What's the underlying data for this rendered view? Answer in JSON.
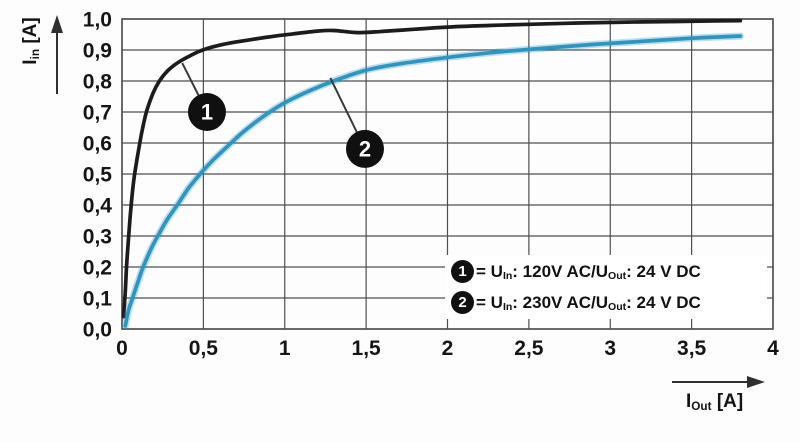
{
  "chart_data": {
    "type": "line",
    "title": "",
    "grid": true,
    "legend_position": "inside-bottom-right",
    "x_axis": {
      "label_main": "I",
      "label_sub": "Out",
      "label_unit": " [A]",
      "range": [
        0,
        4
      ],
      "ticks": [
        0,
        0.5,
        1,
        1.5,
        2,
        2.5,
        3,
        3.5,
        4
      ],
      "tick_labels": [
        "0",
        "0,5",
        "1",
        "1,5",
        "2",
        "2,5",
        "3",
        "3,5",
        "4"
      ]
    },
    "y_axis": {
      "label_main": "I",
      "label_sub": "in",
      "label_unit": " [A]",
      "range": [
        0,
        1
      ],
      "ticks": [
        0,
        0.1,
        0.2,
        0.3,
        0.4,
        0.5,
        0.6,
        0.7,
        0.8,
        0.9,
        1.0
      ],
      "tick_labels": [
        "0,0",
        "0,1",
        "0,2",
        "0,3",
        "0,4",
        "0,5",
        "0,6",
        "0,7",
        "0,8",
        "0,9",
        "1,0"
      ]
    },
    "series": [
      {
        "name": "1",
        "description": "U_In: 120V AC / U_Out: 24 V DC",
        "color": "#1c1c1c",
        "points": [
          [
            0.01,
            0.04
          ],
          [
            0.02,
            0.12
          ],
          [
            0.03,
            0.22
          ],
          [
            0.05,
            0.36
          ],
          [
            0.07,
            0.47
          ],
          [
            0.09,
            0.54
          ],
          [
            0.12,
            0.63
          ],
          [
            0.15,
            0.7
          ],
          [
            0.19,
            0.76
          ],
          [
            0.23,
            0.8
          ],
          [
            0.28,
            0.833
          ],
          [
            0.34,
            0.858
          ],
          [
            0.42,
            0.882
          ],
          [
            0.5,
            0.901
          ],
          [
            0.62,
            0.918
          ],
          [
            0.75,
            0.93
          ],
          [
            0.9,
            0.942
          ],
          [
            1.05,
            0.952
          ],
          [
            1.2,
            0.961
          ],
          [
            1.3,
            0.963
          ],
          [
            1.45,
            0.956
          ],
          [
            1.6,
            0.96
          ],
          [
            1.8,
            0.967
          ],
          [
            2.0,
            0.974
          ],
          [
            2.25,
            0.979
          ],
          [
            2.5,
            0.983
          ],
          [
            2.8,
            0.987
          ],
          [
            3.1,
            0.99
          ],
          [
            3.4,
            0.992
          ],
          [
            3.65,
            0.994
          ],
          [
            3.8,
            0.995
          ]
        ]
      },
      {
        "name": "2",
        "description": "U_In: 230V AC / U_Out: 24 V DC",
        "color": "#2b96c1",
        "points": [
          [
            0.02,
            0.01
          ],
          [
            0.04,
            0.06
          ],
          [
            0.065,
            0.1
          ],
          [
            0.1,
            0.155
          ],
          [
            0.13,
            0.2
          ],
          [
            0.18,
            0.26
          ],
          [
            0.22,
            0.3
          ],
          [
            0.28,
            0.355
          ],
          [
            0.34,
            0.4
          ],
          [
            0.41,
            0.455
          ],
          [
            0.48,
            0.5
          ],
          [
            0.56,
            0.545
          ],
          [
            0.65,
            0.59
          ],
          [
            0.75,
            0.638
          ],
          [
            0.88,
            0.69
          ],
          [
            1.0,
            0.73
          ],
          [
            1.15,
            0.768
          ],
          [
            1.3,
            0.8
          ],
          [
            1.5,
            0.835
          ],
          [
            1.7,
            0.855
          ],
          [
            2.0,
            0.876
          ],
          [
            2.3,
            0.893
          ],
          [
            2.6,
            0.906
          ],
          [
            2.9,
            0.918
          ],
          [
            3.2,
            0.928
          ],
          [
            3.5,
            0.938
          ],
          [
            3.8,
            0.945
          ]
        ]
      }
    ],
    "annotations": [
      {
        "label": "1",
        "cx": 0.522,
        "cy": 0.7,
        "ax": 0.37,
        "ay": 0.858
      },
      {
        "label": "2",
        "cx": 1.493,
        "cy": 0.581,
        "ax": 1.28,
        "ay": 0.81
      }
    ],
    "legend": {
      "rows": [
        {
          "badge": "1",
          "eq": "= U",
          "sub1": "In",
          "mid": ": 120V AC/U",
          "sub2": "Out",
          "tail": ": 24 V DC"
        },
        {
          "badge": "2",
          "eq": "= U",
          "sub1": "In",
          "mid": ": 230V AC/U",
          "sub2": "Out",
          "tail": ": 24 V DC"
        }
      ]
    },
    "colors": {
      "background": "#fdfdfd",
      "grid": "#4f4f4f",
      "axis_text": "#151515",
      "balloon_fill": "#101010",
      "balloon_text": "#ffffff",
      "leader_line": "#3a3a3a",
      "legend_bg": "#ffffff"
    }
  }
}
